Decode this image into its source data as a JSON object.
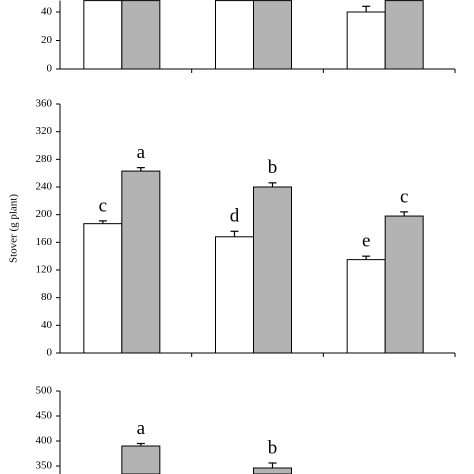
{
  "chart_data": [
    {
      "type": "bar",
      "categories": [
        null,
        null,
        null
      ],
      "series": [
        {
          "name": null,
          "color": "#ffffff",
          "values": [
            48,
            48,
            40
          ],
          "errors": [
            null,
            null,
            4
          ]
        },
        {
          "name": null,
          "color": "#b3b3b3",
          "values": [
            48,
            48,
            48
          ],
          "errors": [
            null,
            null,
            null
          ]
        }
      ],
      "ylim": [
        0,
        48
      ],
      "yticks": [
        0,
        20,
        40
      ]
    },
    {
      "type": "bar",
      "y_label": "Stover (g plant)",
      "categories": [
        null,
        null,
        null
      ],
      "series": [
        {
          "name": null,
          "color": "#ffffff",
          "values": [
            187,
            168,
            135
          ],
          "errors": [
            4,
            8,
            5
          ],
          "letters": [
            "c",
            "d",
            "e"
          ]
        },
        {
          "name": null,
          "color": "#b3b3b3",
          "values": [
            263,
            240,
            198
          ],
          "errors": [
            5,
            6,
            6
          ],
          "letters": [
            "a",
            "b",
            "c"
          ]
        }
      ],
      "ylim": [
        0,
        360
      ],
      "yticks": [
        0,
        40,
        80,
        120,
        160,
        200,
        240,
        280,
        320,
        360
      ]
    },
    {
      "type": "bar",
      "categories": [
        null,
        null,
        null
      ],
      "series": [
        {
          "name": null,
          "color": "#b3b3b3",
          "values": [
            390,
            346,
            null
          ],
          "errors": [
            5,
            10,
            null
          ],
          "letters": [
            "a",
            "b",
            null
          ]
        }
      ],
      "ylim": [
        334,
        500
      ],
      "yticks": [
        350,
        400,
        450,
        500
      ]
    }
  ]
}
